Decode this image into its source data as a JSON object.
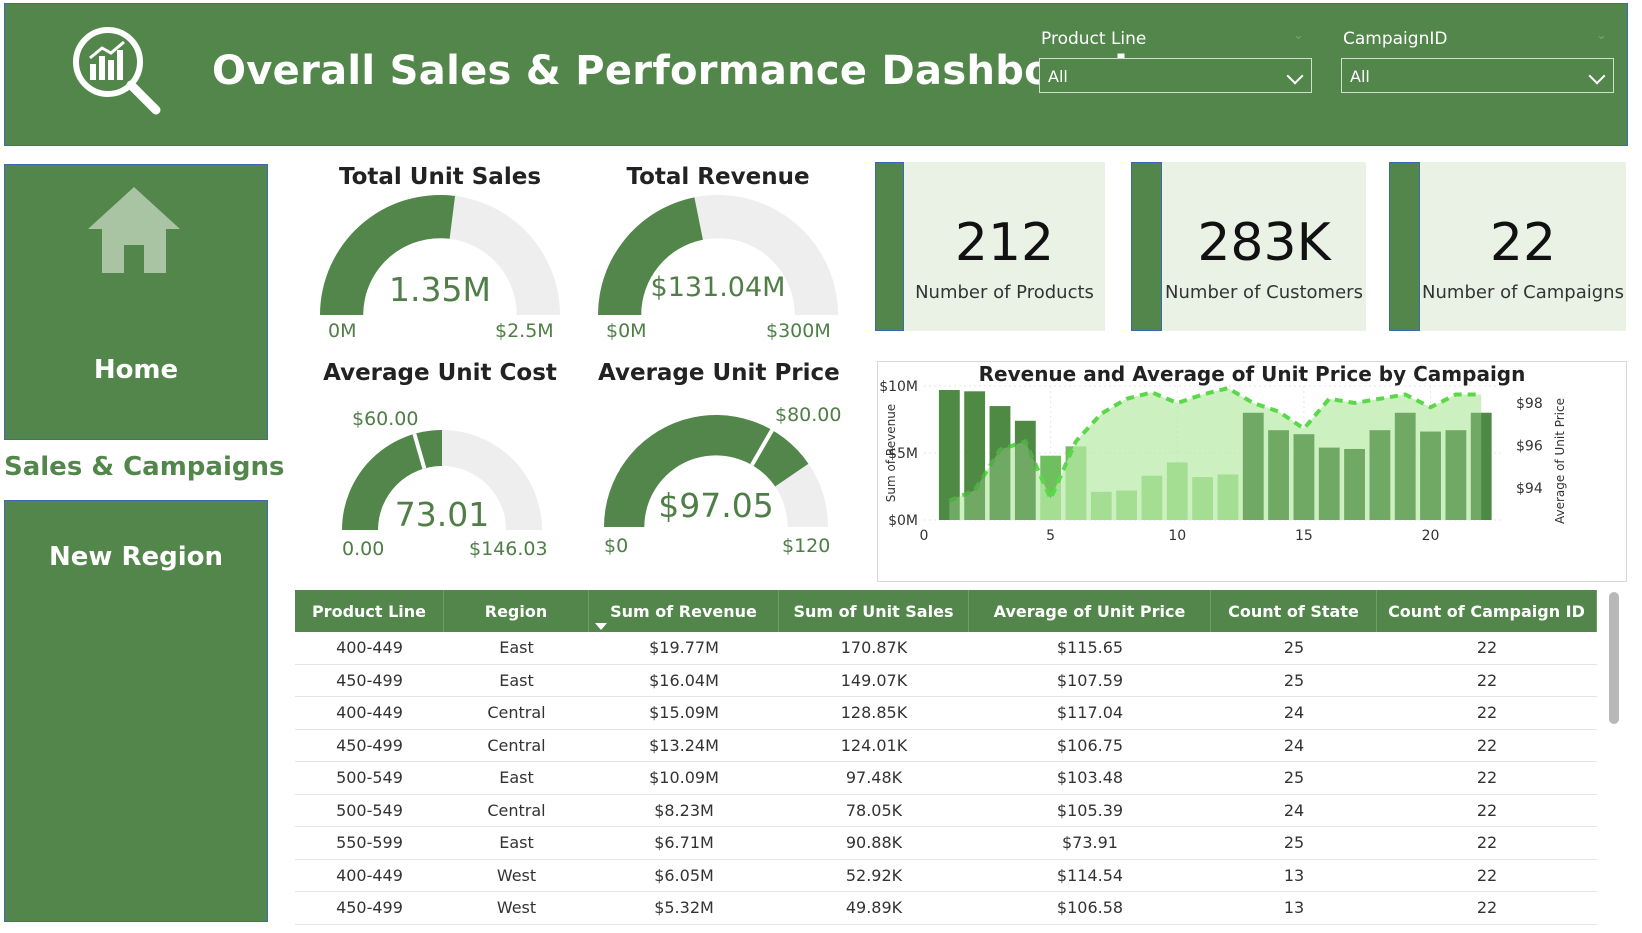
{
  "header": {
    "title": "Overall Sales & Performance Dashboard",
    "logo_icon": "analytics-magnifier-icon",
    "slicers": [
      {
        "label": "Product Line",
        "value": "All"
      },
      {
        "label": "CampaignID",
        "value": "All"
      }
    ]
  },
  "nav": {
    "home_icon": "home-icon",
    "home": "Home",
    "sales_campaigns": "Sales & Campaigns",
    "new_region": "New Region"
  },
  "gauges": [
    {
      "title": "Total Unit Sales",
      "value": "1.35M",
      "min": "0M",
      "max": "$2.5M",
      "fill_fraction": 0.54
    },
    {
      "title": "Total Revenue",
      "value": "$131.04M",
      "min": "$0M",
      "max": "$300M",
      "fill_fraction": 0.437
    },
    {
      "title": "Average Unit Cost",
      "value": "73.01",
      "min": "0.00",
      "max": "$146.03",
      "target": "$60.00",
      "fill_fraction": 0.5,
      "target_fraction": 0.411
    },
    {
      "title": "Average Unit Price",
      "value": "$97.05",
      "min": "$0",
      "max": "$120",
      "target": "$80.00",
      "fill_fraction": 0.809,
      "target_fraction": 0.667
    }
  ],
  "cards": [
    {
      "value": "212",
      "label": "Number of Products"
    },
    {
      "value": "283K",
      "label": "Number of Customers"
    },
    {
      "value": "22",
      "label": "Number of Campaigns"
    }
  ],
  "chart_data": {
    "type": "bar",
    "title": "Revenue and Average of Unit Price by Campaign",
    "ylabel": "Sum of Revenue",
    "y2label": "Average of Unit Price",
    "x": [
      1,
      2,
      3,
      4,
      5,
      6,
      7,
      8,
      9,
      10,
      11,
      12,
      13,
      14,
      15,
      16,
      17,
      18,
      19,
      20,
      21,
      22
    ],
    "xticks": [
      "0",
      "5",
      "10",
      "15",
      "20"
    ],
    "xlim": [
      0,
      22.9
    ],
    "yticks": [
      "$0M",
      "$5M",
      "$10M"
    ],
    "ylim": [
      0,
      10
    ],
    "y2ticks": [
      "$94",
      "$96",
      "$98"
    ],
    "y2lim": [
      92.5,
      98.8
    ],
    "series": [
      {
        "type": "bar",
        "values": [
          9.7,
          9.6,
          8.5,
          7.4,
          4.8,
          5.5,
          2.1,
          2.2,
          3.3,
          4.3,
          3.2,
          3.4,
          8.0,
          6.7,
          6.4,
          5.4,
          5.3,
          6.7,
          8.0,
          6.6,
          6.7,
          8.0
        ]
      },
      {
        "type": "area",
        "values": [
          93.4,
          93.9,
          95.8,
          96.2,
          93.5,
          96.2,
          97.5,
          98.2,
          98.5,
          98.0,
          98.4,
          98.7,
          98.0,
          97.6,
          96.8,
          98.2,
          98.0,
          98.2,
          98.4,
          97.8,
          98.4,
          98.4
        ]
      }
    ],
    "colors": {
      "bar_dark": "#4e8a44",
      "bar_light": "#6fbf5f",
      "area": "#b9eaa6",
      "line": "#5ad84a"
    }
  },
  "table": {
    "columns": [
      "Product Line",
      "Region",
      "Sum of Revenue",
      "Sum of Unit Sales",
      "Average of Unit Price",
      "Count of State",
      "Count of Campaign ID"
    ],
    "rows": [
      [
        "400-449",
        "East",
        "$19.77M",
        "170.87K",
        "$115.65",
        "25",
        "22"
      ],
      [
        "450-499",
        "East",
        "$16.04M",
        "149.07K",
        "$107.59",
        "25",
        "22"
      ],
      [
        "400-449",
        "Central",
        "$15.09M",
        "128.85K",
        "$117.04",
        "24",
        "22"
      ],
      [
        "450-499",
        "Central",
        "$13.24M",
        "124.01K",
        "$106.75",
        "24",
        "22"
      ],
      [
        "500-549",
        "East",
        "$10.09M",
        "97.48K",
        "$103.48",
        "25",
        "22"
      ],
      [
        "500-549",
        "Central",
        "$8.23M",
        "78.05K",
        "$105.39",
        "24",
        "22"
      ],
      [
        "550-599",
        "East",
        "$6.71M",
        "90.88K",
        "$73.91",
        "25",
        "22"
      ],
      [
        "400-449",
        "West",
        "$6.05M",
        "52.92K",
        "$114.54",
        "13",
        "22"
      ],
      [
        "450-499",
        "West",
        "$5.32M",
        "49.89K",
        "$106.58",
        "13",
        "22"
      ]
    ]
  }
}
